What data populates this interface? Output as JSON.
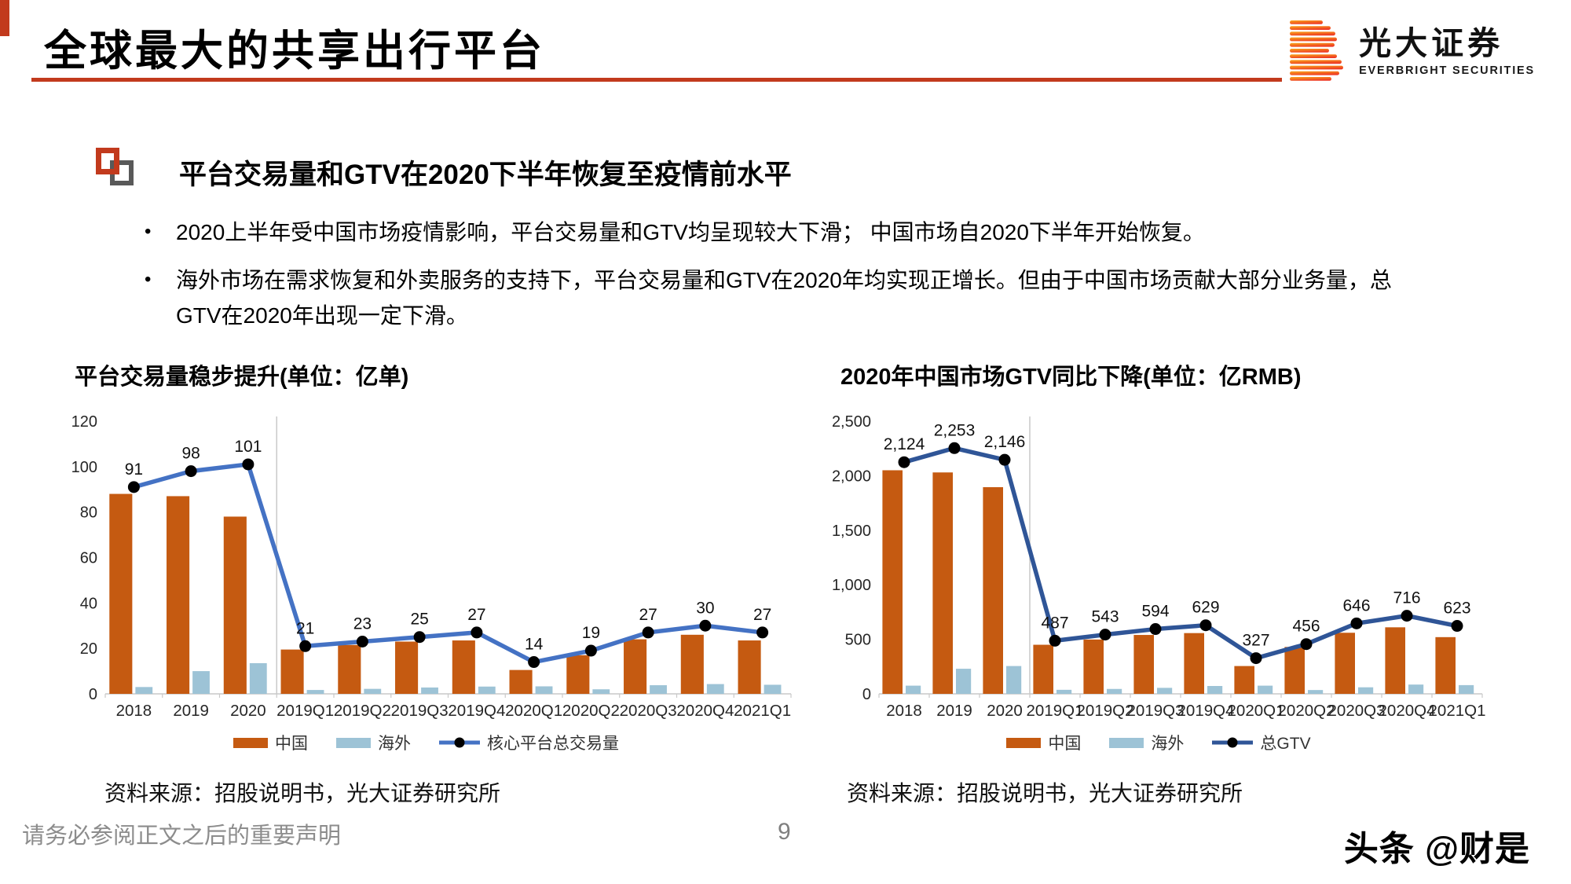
{
  "slide": {
    "title": "全球最大的共享出行平台",
    "accent_color": "#C23A1D",
    "page_number": "9",
    "footer_disclaimer": "请务必参阅正文之后的重要声明",
    "watermark": "头条 @财是"
  },
  "logo": {
    "icon": "everbright-b-logo",
    "name_cn": "光大证券",
    "name_en": "EVERBRIGHT SECURITIES"
  },
  "section": {
    "icon": "overlapping-squares-icon",
    "bullet_char": "•",
    "heading": "平台交易量和GTV在2020下半年恢复至疫情前水平",
    "bullets": [
      "2020上半年受中国市场疫情影响，平台交易量和GTV均呈现较大下滑； 中国市场自2020下半年开始恢复。",
      "海外市场在需求恢复和外卖服务的支持下，平台交易量和GTV在2020年均实现正增长。但由于中国市场贡献大部分业务量，总GTV在2020年出现一定下滑。"
    ]
  },
  "chart_data": [
    {
      "type": "bar+line",
      "title": "平台交易量稳步提升(单位：亿单)",
      "source": "资料来源：招股说明书，光大证券研究所",
      "categories": [
        "2018",
        "2019",
        "2020",
        "2019Q1",
        "2019Q2",
        "2019Q3",
        "2019Q4",
        "2020Q1",
        "2020Q2",
        "2020Q3",
        "2020Q4",
        "2021Q1"
      ],
      "series": [
        {
          "name": "中国",
          "kind": "bar",
          "color": "#C55A11",
          "values": [
            88,
            87,
            78,
            19.5,
            21.5,
            23,
            23.5,
            10.5,
            17,
            24,
            26,
            23.5
          ]
        },
        {
          "name": "海外",
          "kind": "bar",
          "color": "#9DC3D6",
          "values": [
            3,
            10,
            13.5,
            1.7,
            2.2,
            2.8,
            3.2,
            3.3,
            2,
            3.8,
            4.3,
            4
          ]
        },
        {
          "name": "核心平台总交易量",
          "kind": "line",
          "color": "#4472C4",
          "values": [
            91,
            98,
            101,
            21,
            23,
            25,
            27,
            14,
            19,
            27,
            30,
            27
          ]
        }
      ],
      "y_ticks": [
        0,
        20,
        40,
        60,
        80,
        100,
        120
      ],
      "ylim": [
        0,
        120
      ],
      "separator_after_index": 2,
      "comma_format": false,
      "grid": false,
      "legend_position": "bottom"
    },
    {
      "type": "bar+line",
      "title": "2020年中国市场GTV同比下降(单位：亿RMB)",
      "source": "资料来源：招股说明书，光大证券研究所",
      "categories": [
        "2018",
        "2019",
        "2020",
        "2019Q1",
        "2019Q2",
        "2019Q3",
        "2019Q4",
        "2020Q1",
        "2020Q2",
        "2020Q3",
        "2020Q4",
        "2021Q1"
      ],
      "series": [
        {
          "name": "中国",
          "kind": "bar",
          "color": "#C55A11",
          "values": [
            2050,
            2030,
            1895,
            450,
            498,
            540,
            557,
            255,
            430,
            560,
            610,
            520
          ]
        },
        {
          "name": "海外",
          "kind": "bar",
          "color": "#9DC3D6",
          "values": [
            75,
            230,
            255,
            37,
            45,
            55,
            72,
            75,
            35,
            60,
            85,
            80
          ]
        },
        {
          "name": "总GTV",
          "kind": "line",
          "color": "#2F5597",
          "values": [
            2124,
            2253,
            2146,
            487,
            543,
            594,
            629,
            327,
            456,
            646,
            716,
            623
          ]
        }
      ],
      "y_ticks": [
        0,
        500,
        1000,
        1500,
        2000,
        2500
      ],
      "ylim": [
        0,
        2500
      ],
      "separator_after_index": 2,
      "comma_format": true,
      "grid": false,
      "legend_position": "bottom"
    }
  ]
}
